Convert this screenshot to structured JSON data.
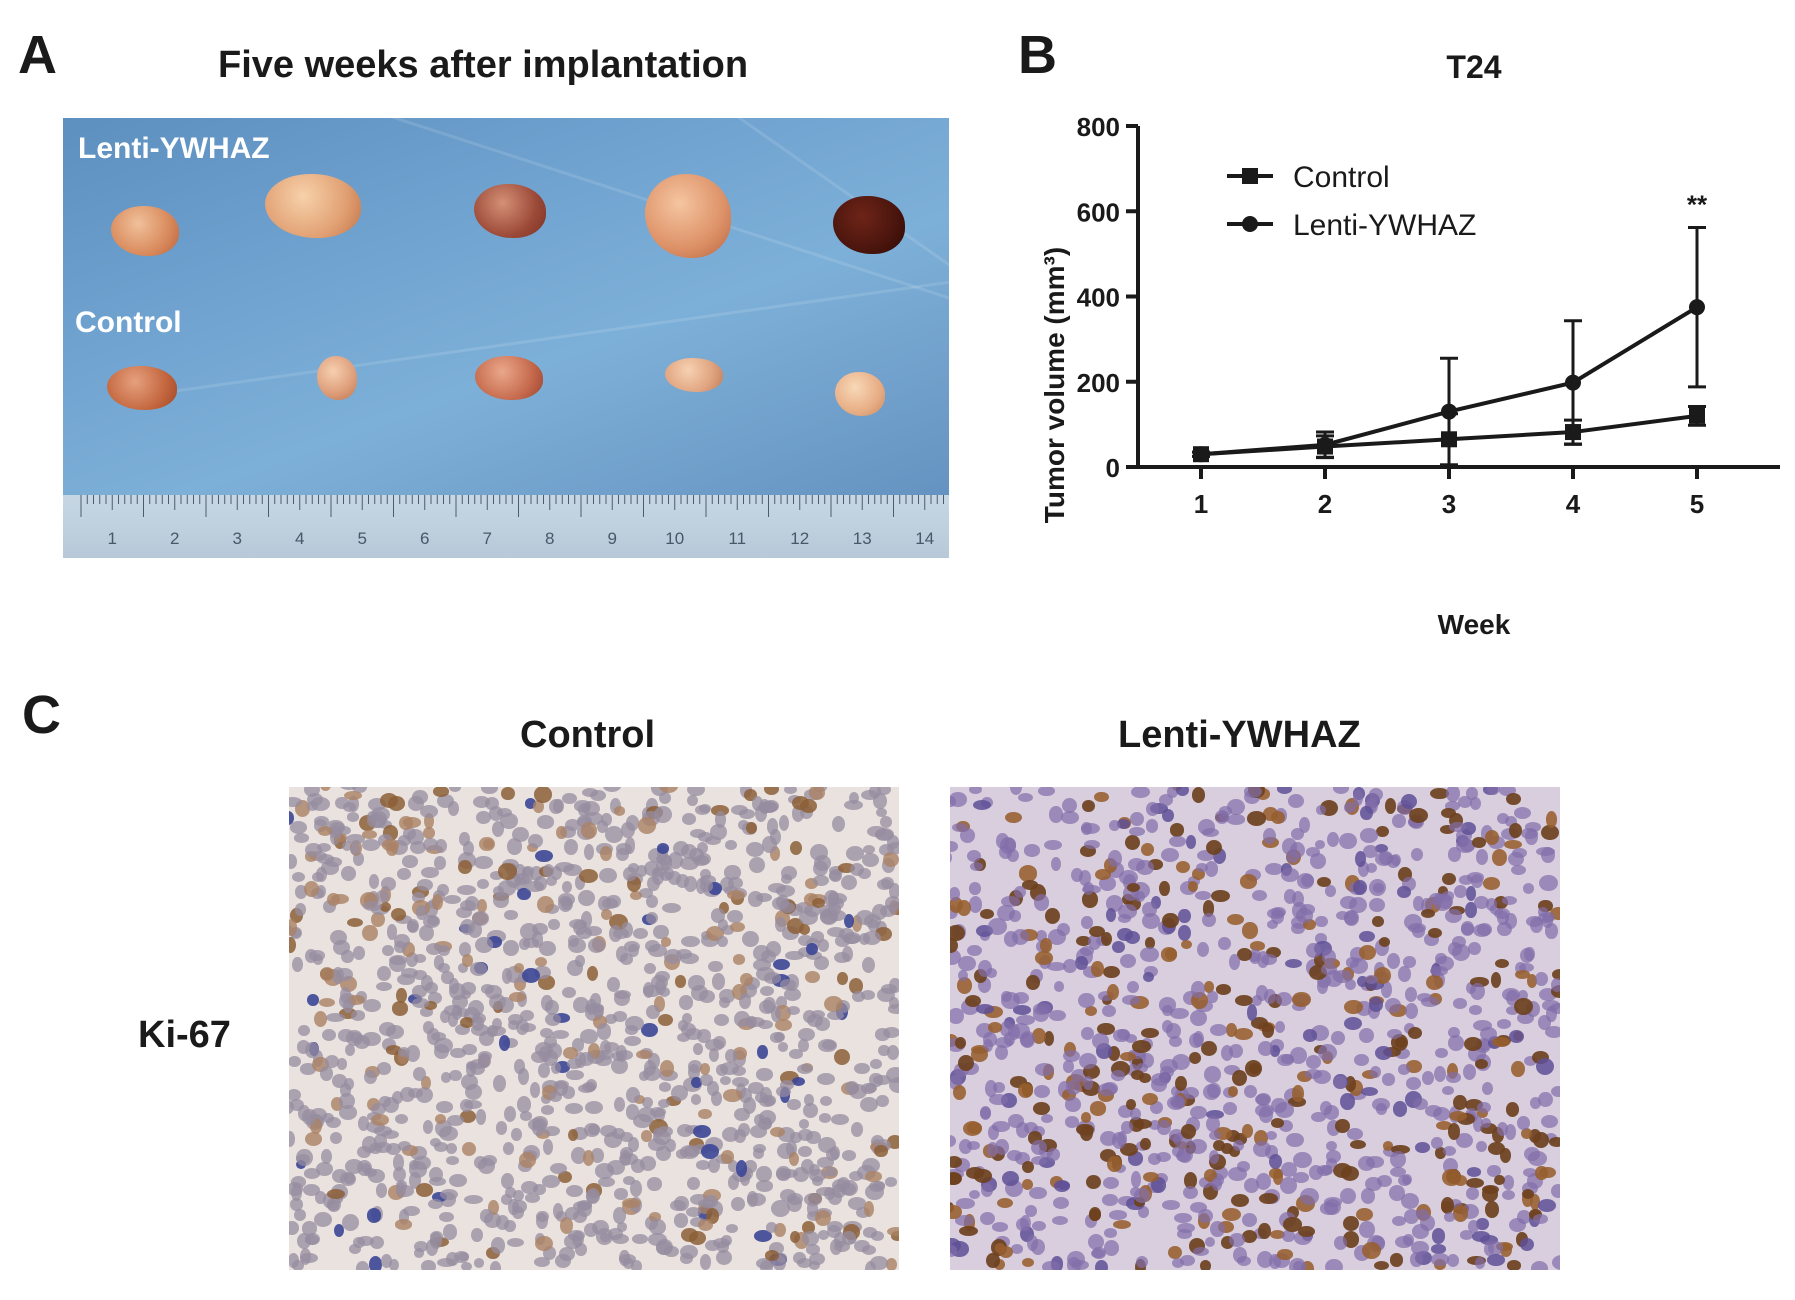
{
  "panel_a": {
    "letter": "A",
    "title": "Five weeks after implantation",
    "label_top": "Lenti-YWHAZ",
    "label_bottom": "Control",
    "ruler_numbers": [
      "1",
      "2",
      "3",
      "4",
      "5",
      "6",
      "7",
      "8",
      "9",
      "10",
      "11",
      "12",
      "13",
      "14"
    ]
  },
  "panel_b": {
    "letter": "B",
    "star_annotation": "**"
  },
  "panel_c": {
    "letter": "C",
    "col_left": "Control",
    "col_right": "Lenti-YWHAZ",
    "row_label": "Ki-67"
  },
  "chart_data": {
    "type": "line",
    "title": "T24",
    "xlabel": "Week",
    "ylabel": "Tumor volume (mm³)",
    "x": [
      1,
      2,
      3,
      4,
      5
    ],
    "xlim": [
      0.6,
      5.8
    ],
    "ylim": [
      0,
      800
    ],
    "yticks": [
      0,
      200,
      400,
      600,
      800
    ],
    "legend_position": "top-left",
    "series": [
      {
        "name": "Control",
        "marker": "square",
        "values": [
          30,
          48,
          65,
          82,
          120
        ],
        "errors": [
          5,
          25,
          60,
          28,
          22
        ]
      },
      {
        "name": "Lenti-YWHAZ",
        "marker": "circle",
        "values": [
          30,
          52,
          130,
          198,
          375
        ],
        "errors": [
          5,
          30,
          125,
          145,
          187
        ]
      }
    ]
  }
}
